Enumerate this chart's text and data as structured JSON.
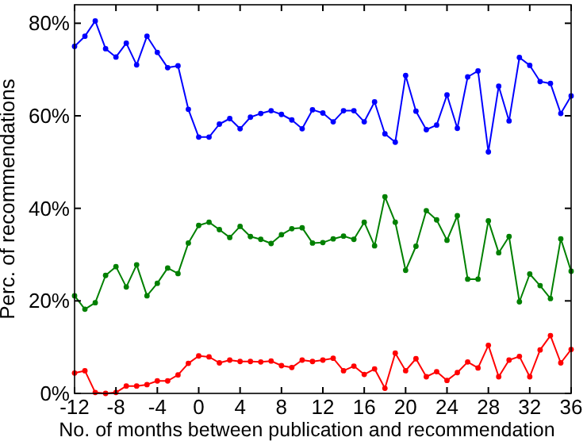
{
  "chart_data": {
    "type": "line",
    "xlabel": "No. of months between publication and recommendation",
    "ylabel": "Perc. of recommendations",
    "x": [
      -12,
      -11,
      -10,
      -9,
      -8,
      -7,
      -6,
      -5,
      -4,
      -3,
      -2,
      -1,
      0,
      1,
      2,
      3,
      4,
      5,
      6,
      7,
      8,
      9,
      10,
      11,
      12,
      13,
      14,
      15,
      16,
      17,
      18,
      19,
      20,
      21,
      22,
      23,
      24,
      25,
      26,
      27,
      28,
      29,
      30,
      31,
      32,
      33,
      34,
      35,
      36
    ],
    "xlim": [
      -12,
      36
    ],
    "xticks": [
      -12,
      -8,
      -4,
      0,
      4,
      8,
      12,
      16,
      20,
      24,
      28,
      32,
      36
    ],
    "ylim": [
      0,
      84
    ],
    "yticks": [
      {
        "value": 0,
        "label": "0%"
      },
      {
        "value": 20,
        "label": "20%"
      },
      {
        "value": 40,
        "label": "40%"
      },
      {
        "value": 60,
        "label": "60%"
      },
      {
        "value": 80,
        "label": "80%"
      }
    ],
    "marker": "circle",
    "line_style": "solid",
    "grid": false,
    "series": [
      {
        "color": "#0000ff",
        "values": [
          75.0,
          77.2,
          80.5,
          74.5,
          72.7,
          75.7,
          71.0,
          77.2,
          73.7,
          70.4,
          70.8,
          61.4,
          55.4,
          55.4,
          58.2,
          59.4,
          57.2,
          59.7,
          60.5,
          61.1,
          60.3,
          59.1,
          57.2,
          61.3,
          60.6,
          58.7,
          61.1,
          61.1,
          58.7,
          63.0,
          56.1,
          54.3,
          68.7,
          61.0,
          57.0,
          58.0,
          64.5,
          57.3,
          68.4,
          69.7,
          52.2,
          66.4,
          58.9,
          72.6,
          70.9,
          67.4,
          67.0,
          60.5,
          64.3
        ]
      },
      {
        "color": "#008000",
        "values": [
          21.1,
          18.2,
          19.6,
          25.5,
          27.4,
          23.0,
          27.8,
          21.1,
          23.8,
          27.1,
          25.9,
          32.5,
          36.3,
          37.0,
          35.4,
          33.7,
          36.1,
          33.9,
          33.3,
          32.4,
          34.3,
          35.6,
          35.8,
          32.5,
          32.6,
          33.4,
          34.0,
          33.3,
          37.0,
          31.9,
          42.5,
          37.0,
          26.6,
          31.8,
          39.5,
          37.5,
          33.1,
          38.4,
          24.7,
          24.7,
          37.3,
          30.4,
          33.9,
          19.8,
          25.8,
          23.3,
          20.5,
          33.4,
          26.4
        ]
      },
      {
        "color": "#ff0000",
        "values": [
          4.4,
          4.9,
          0.2,
          0,
          0.2,
          1.6,
          1.6,
          1.9,
          2.7,
          2.7,
          4.0,
          6.5,
          8.1,
          7.9,
          6.6,
          7.2,
          6.9,
          6.9,
          6.8,
          7.0,
          6.0,
          5.6,
          7.2,
          6.9,
          7.2,
          7.6,
          4.9,
          5.9,
          4.1,
          5.3,
          1.1,
          8.7,
          4.9,
          7.5,
          3.6,
          4.7,
          2.8,
          4.5,
          6.8,
          5.5,
          10.4,
          3.6,
          7.2,
          8.0,
          3.6,
          9.4,
          12.5,
          6.6,
          9.5
        ]
      }
    ]
  }
}
